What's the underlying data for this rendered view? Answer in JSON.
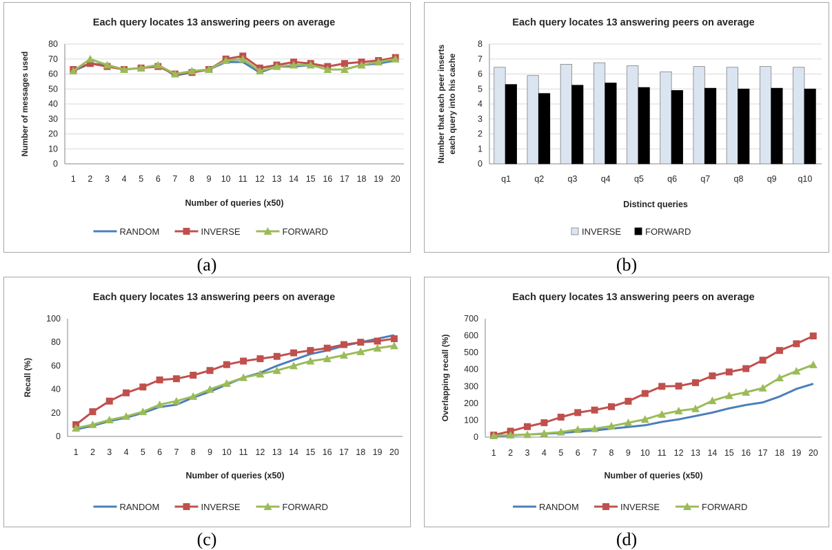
{
  "colors": {
    "random": "#4a7ebb",
    "inverse": "#c0504d",
    "forward": "#9bbb59",
    "bar_inverse": "#dbe5f1",
    "bar_forward": "#000000",
    "grid": "#d9d9d9"
  },
  "chart_data": [
    {
      "id": "a",
      "type": "line",
      "caption": "(a)",
      "title": "Each query locates 13 answering peers on average",
      "xlabel": "Number of queries (x50)",
      "ylabel": "Number of messages used",
      "ylim": [
        0,
        80
      ],
      "yticks": [
        0,
        10,
        20,
        30,
        40,
        50,
        60,
        70,
        80
      ],
      "categories": [
        "1",
        "2",
        "3",
        "4",
        "5",
        "6",
        "7",
        "8",
        "9",
        "10",
        "11",
        "12",
        "13",
        "14",
        "15",
        "16",
        "17",
        "18",
        "19",
        "20"
      ],
      "grid": true,
      "legend": "bottom",
      "series": [
        {
          "name": "RANDOM",
          "key": "random",
          "marker": "none",
          "values": [
            62,
            67,
            66,
            63,
            64,
            66,
            59,
            61,
            63,
            68,
            68,
            61,
            65,
            65,
            66,
            63,
            63,
            66,
            67,
            69
          ]
        },
        {
          "name": "INVERSE",
          "key": "inverse",
          "marker": "square",
          "values": [
            63,
            67,
            65,
            63,
            64,
            65,
            60,
            61,
            63,
            70,
            72,
            64,
            66,
            68,
            67,
            65,
            67,
            68,
            69,
            71
          ]
        },
        {
          "name": "FORWARD",
          "key": "forward",
          "marker": "triangle",
          "values": [
            62,
            70,
            66,
            63,
            64,
            66,
            60,
            62,
            63,
            69,
            70,
            62,
            65,
            66,
            66,
            63,
            63,
            66,
            68,
            70
          ]
        }
      ]
    },
    {
      "id": "b",
      "type": "bar",
      "caption": "(b)",
      "title": "Each query locates 13 answering peers on average",
      "xlabel": "Distinct queries",
      "ylabel": "Number that each peer inserts each query into his cache",
      "ylim": [
        0,
        8
      ],
      "yticks": [
        0,
        1,
        2,
        3,
        4,
        5,
        6,
        7,
        8
      ],
      "categories": [
        "q1",
        "q2",
        "q3",
        "q4",
        "q5",
        "q6",
        "q7",
        "q8",
        "q9",
        "q10"
      ],
      "grid": true,
      "legend": "bottom",
      "series": [
        {
          "name": "INVERSE",
          "key": "bar_inverse",
          "values": [
            6.45,
            5.9,
            6.65,
            6.75,
            6.55,
            6.15,
            6.5,
            6.45,
            6.5,
            6.45
          ]
        },
        {
          "name": "FORWARD",
          "key": "bar_forward",
          "values": [
            5.3,
            4.7,
            5.25,
            5.4,
            5.1,
            4.9,
            5.05,
            5.0,
            5.05,
            5.0
          ]
        }
      ]
    },
    {
      "id": "c",
      "type": "line",
      "caption": "(c)",
      "title": "Each query locates 13 answering peers on average",
      "xlabel": "Number of queries (x50)",
      "ylabel": "Recall (%)",
      "ylim": [
        0,
        100
      ],
      "yticks": [
        0,
        20,
        40,
        60,
        80,
        100
      ],
      "categories": [
        "1",
        "2",
        "3",
        "4",
        "5",
        "6",
        "7",
        "8",
        "9",
        "10",
        "11",
        "12",
        "13",
        "14",
        "15",
        "16",
        "17",
        "18",
        "19",
        "20"
      ],
      "grid": false,
      "legend": "bottom",
      "series": [
        {
          "name": "RANDOM",
          "key": "random",
          "marker": "none",
          "values": [
            6,
            9,
            13,
            16,
            20,
            25,
            27,
            33,
            38,
            44,
            50,
            54,
            60,
            65,
            70,
            73,
            77,
            80,
            83,
            86
          ]
        },
        {
          "name": "INVERSE",
          "key": "inverse",
          "marker": "square",
          "values": [
            10,
            21,
            30,
            37,
            42,
            48,
            49,
            52,
            56,
            61,
            64,
            66,
            68,
            71,
            73,
            75,
            78,
            80,
            81,
            83
          ]
        },
        {
          "name": "FORWARD",
          "key": "forward",
          "marker": "triangle",
          "values": [
            7,
            10,
            14,
            17,
            21,
            27,
            30,
            34,
            40,
            45,
            50,
            53,
            56,
            60,
            64,
            66,
            69,
            72,
            75,
            77
          ]
        }
      ]
    },
    {
      "id": "d",
      "type": "line",
      "caption": "(d)",
      "title": "Each query locates 13 answering peers on average",
      "xlabel": "Number of queries  (x50)",
      "ylabel": "Overlapping recall (%)",
      "ylim": [
        0,
        700
      ],
      "yticks": [
        0,
        100,
        200,
        300,
        400,
        500,
        600,
        700
      ],
      "categories": [
        "1",
        "2",
        "3",
        "4",
        "5",
        "6",
        "7",
        "8",
        "9",
        "10",
        "11",
        "12",
        "13",
        "14",
        "15",
        "16",
        "17",
        "18",
        "19",
        "20"
      ],
      "grid": false,
      "legend": "bottom",
      "series": [
        {
          "name": "RANDOM",
          "key": "random",
          "marker": "none",
          "values": [
            5,
            10,
            15,
            20,
            25,
            32,
            40,
            50,
            60,
            70,
            90,
            105,
            125,
            145,
            170,
            190,
            205,
            240,
            285,
            315
          ]
        },
        {
          "name": "INVERSE",
          "key": "inverse",
          "marker": "square",
          "values": [
            12,
            35,
            62,
            85,
            118,
            145,
            160,
            180,
            212,
            258,
            300,
            302,
            322,
            362,
            385,
            405,
            455,
            512,
            552,
            598
          ]
        },
        {
          "name": "FORWARD",
          "key": "forward",
          "marker": "triangle",
          "values": [
            8,
            12,
            15,
            22,
            30,
            45,
            50,
            65,
            85,
            105,
            135,
            155,
            168,
            215,
            245,
            265,
            290,
            350,
            390,
            428
          ]
        }
      ]
    }
  ]
}
